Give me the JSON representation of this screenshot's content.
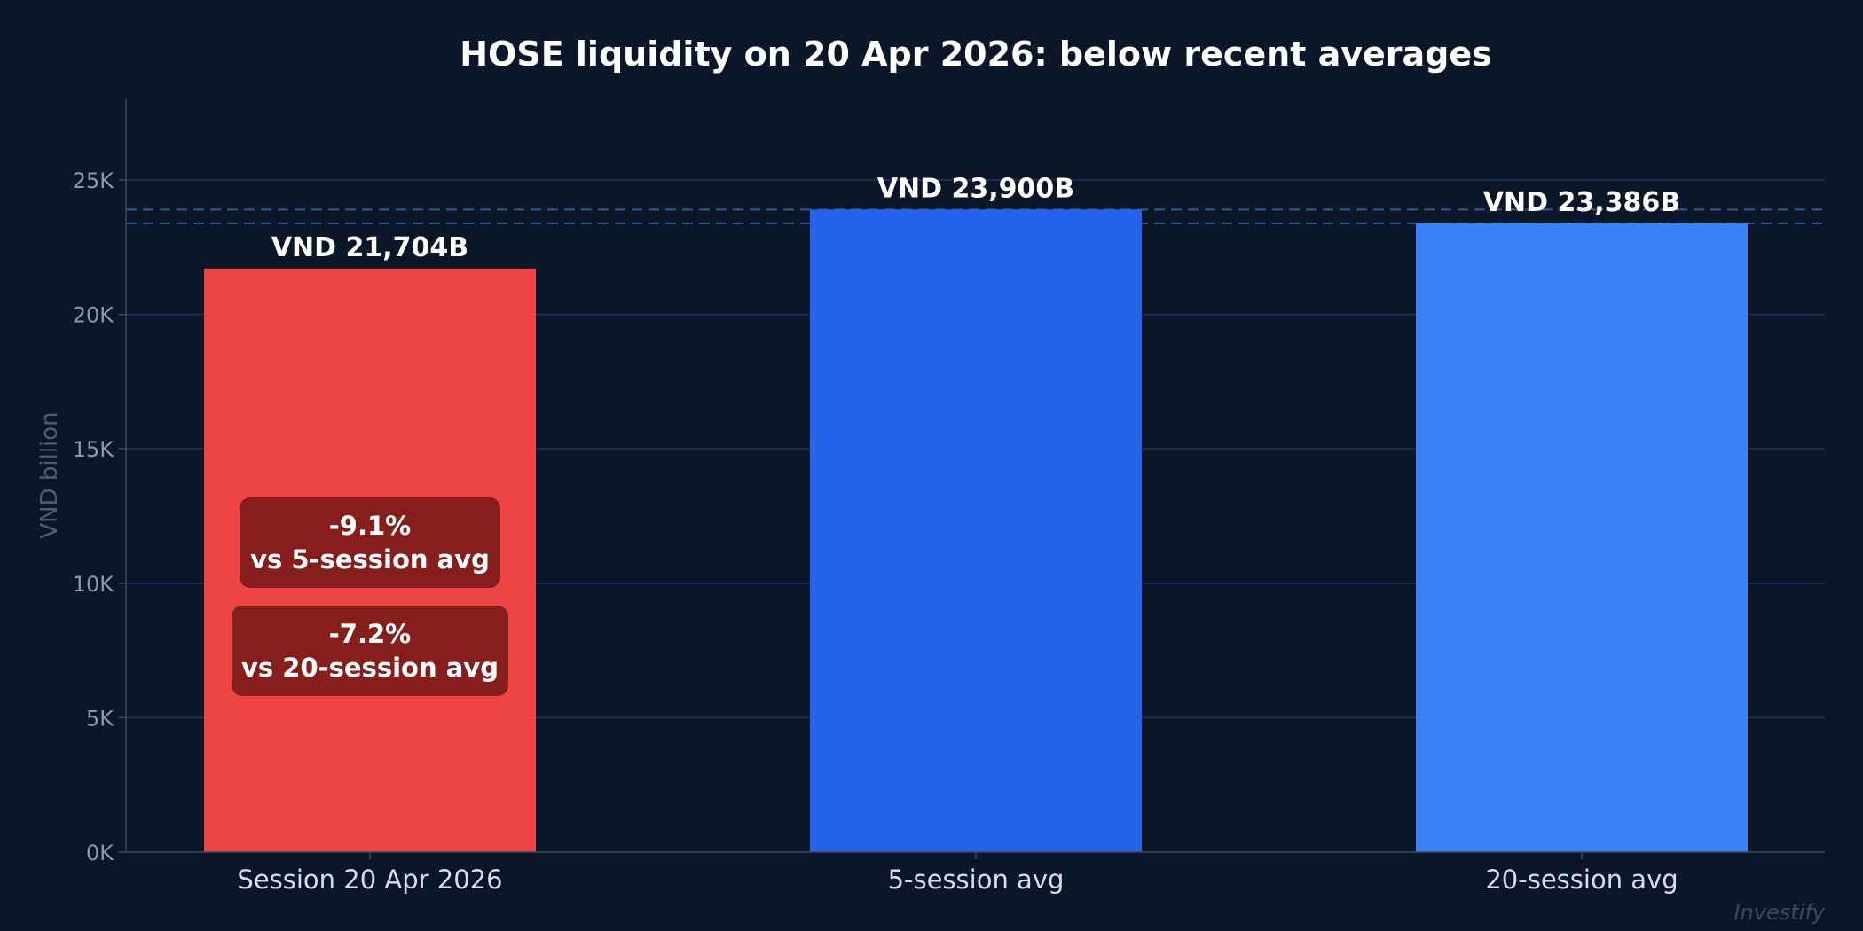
{
  "chart_data": {
    "type": "bar",
    "title": "HOSE liquidity on 20 Apr 2026: below recent averages",
    "xlabel": "",
    "ylabel": "VND billion",
    "ylim": [
      0,
      28000
    ],
    "yticks": [
      0,
      5000,
      10000,
      15000,
      20000,
      25000
    ],
    "ytick_labels": [
      "0K",
      "5K",
      "10K",
      "15K",
      "20K",
      "25K"
    ],
    "grid": true,
    "categories": [
      "Session 20 Apr 2026",
      "5-session avg",
      "20-session avg"
    ],
    "values": [
      21704,
      23900,
      23386
    ],
    "data_labels": [
      "VND 21,704B",
      "VND 23,900B",
      "VND 23,386B"
    ],
    "colors": [
      "#ef4444",
      "#2563eb",
      "#3b82f6"
    ],
    "reference_lines": [
      {
        "value": 23900,
        "style": "dashed",
        "color": "#2f5aa0"
      },
      {
        "value": 23386,
        "style": "dashed",
        "color": "#2f5aa0"
      }
    ],
    "annotations": [
      {
        "line1": "-9.1%",
        "line2": "vs 5-session avg"
      },
      {
        "line1": "-7.2%",
        "line2": "vs 20-session avg"
      }
    ],
    "annotation_color": "#861e1e",
    "background": "#0b1628",
    "watermark": "Investify"
  }
}
